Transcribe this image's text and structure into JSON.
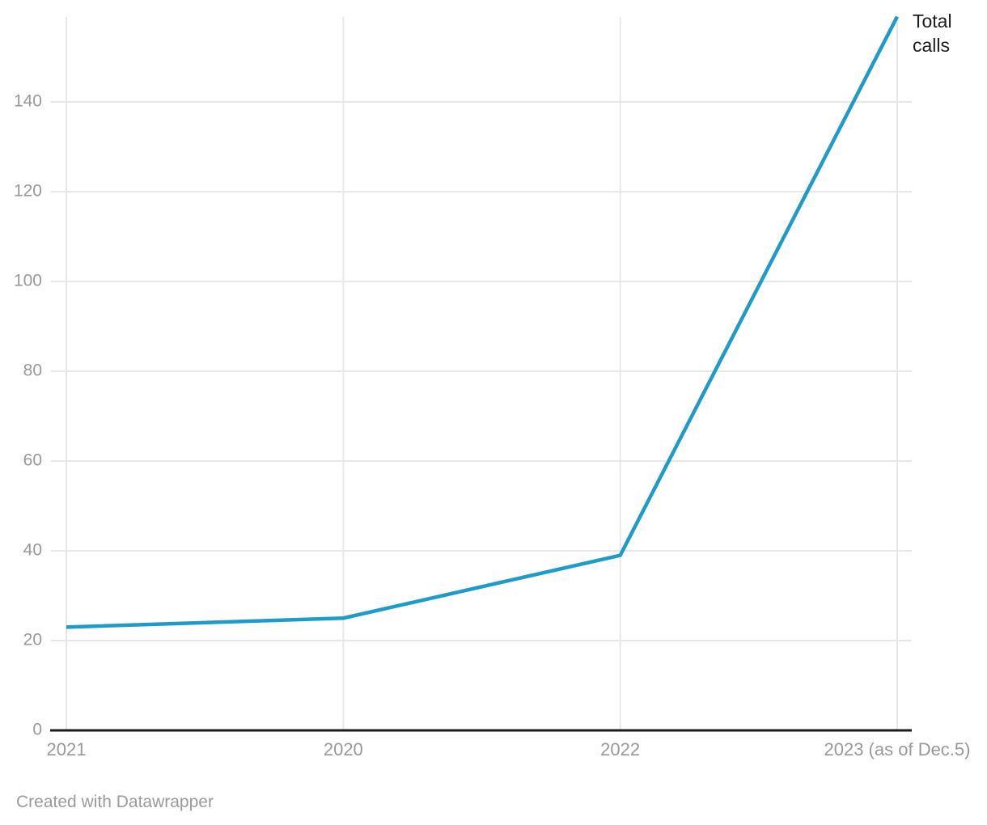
{
  "chart_data": {
    "type": "line",
    "title": "",
    "xlabel": "",
    "ylabel": "",
    "categories": [
      "2021",
      "2020",
      "2022",
      "2023 (as of Dec.5)"
    ],
    "series": [
      {
        "name": "Total calls",
        "values": [
          23,
          25,
          39,
          159
        ]
      }
    ],
    "yticks": [
      0,
      20,
      40,
      60,
      80,
      100,
      120,
      140
    ],
    "ylim": [
      0,
      159
    ],
    "grid": true,
    "legend_position": "end-of-line-right"
  },
  "attribution": "Created with Datawrapper",
  "colors": {
    "line": "#1f9bca",
    "gridline": "#e7e7e7",
    "axis": "#1c1c1c",
    "tick_text": "#999999",
    "label_text": "#1d1d1d",
    "muted_text": "#9b9b9b",
    "background": "#ffffff"
  }
}
